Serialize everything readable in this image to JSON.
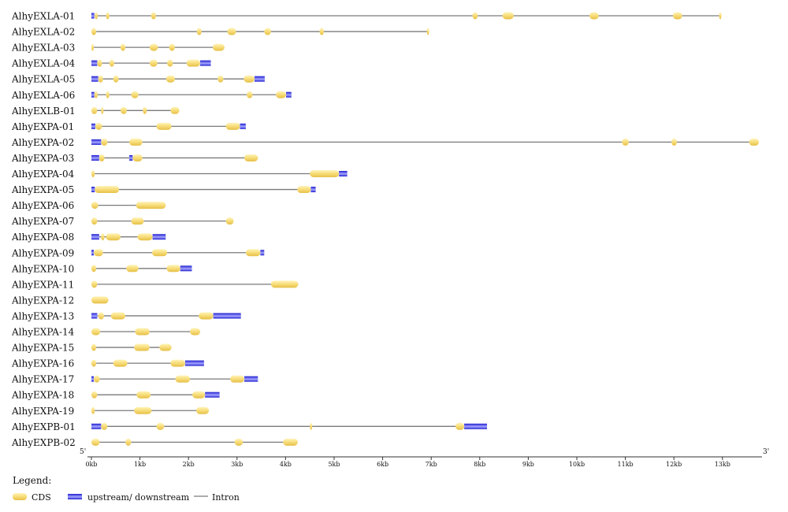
{
  "colors": {
    "cds_light": "#fff4b8",
    "cds_mid": "#f7dc78",
    "cds_dark": "#e6c048",
    "utr_dark": "#1c1ccf",
    "utr_light": "#a6a6ff",
    "intron": "#7a7a7a",
    "text": "#111111"
  },
  "axis": {
    "five_prime": "5'",
    "three_prime": "3'",
    "ticks": [
      {
        "value": 0,
        "label": "0kb"
      },
      {
        "value": 1,
        "label": "1kb"
      },
      {
        "value": 2,
        "label": "2kb"
      },
      {
        "value": 3,
        "label": "3kb"
      },
      {
        "value": 4,
        "label": "4kb"
      },
      {
        "value": 5,
        "label": "5kb"
      },
      {
        "value": 6,
        "label": "6kb"
      },
      {
        "value": 7,
        "label": "7kb"
      },
      {
        "value": 8,
        "label": "8kb"
      },
      {
        "value": 9,
        "label": "9kb"
      },
      {
        "value": 10,
        "label": "10kb"
      },
      {
        "value": 11,
        "label": "11kb"
      },
      {
        "value": 12,
        "label": "12kb"
      },
      {
        "value": 13,
        "label": "13kb"
      }
    ],
    "max": 13.75
  },
  "legend": {
    "title": "Legend:",
    "cds": "CDS",
    "utr": "upstream/ downstream",
    "intron": "Intron"
  },
  "genes": [
    {
      "name": "AlhyEXLA-01",
      "utr": [
        [
          0,
          0.06
        ]
      ],
      "cds": [
        [
          0.07,
          0.13
        ],
        [
          0.3,
          0.37
        ],
        [
          1.23,
          1.33
        ],
        [
          7.85,
          7.96
        ],
        [
          8.47,
          8.7
        ],
        [
          10.26,
          10.45
        ],
        [
          11.98,
          12.17
        ],
        [
          12.93,
          12.98
        ]
      ]
    },
    {
      "name": "AlhyEXLA-02",
      "utr": [],
      "cds": [
        [
          0,
          0.1
        ],
        [
          2.17,
          2.27
        ],
        [
          2.8,
          2.98
        ],
        [
          3.56,
          3.7
        ],
        [
          4.7,
          4.79
        ],
        [
          6.91,
          6.94
        ]
      ]
    },
    {
      "name": "AlhyEXLA-03",
      "utr": [],
      "cds": [
        [
          0,
          0.05
        ],
        [
          0.6,
          0.7
        ],
        [
          1.2,
          1.37
        ],
        [
          1.6,
          1.72
        ],
        [
          2.5,
          2.74
        ]
      ]
    },
    {
      "name": "AlhyEXLA-04",
      "utr": [
        [
          0,
          0.12
        ],
        [
          2.24,
          2.46
        ]
      ],
      "cds": [
        [
          0.12,
          0.22
        ],
        [
          0.37,
          0.47
        ],
        [
          1.2,
          1.36
        ],
        [
          1.56,
          1.68
        ],
        [
          1.96,
          2.24
        ]
      ]
    },
    {
      "name": "AlhyEXLA-05",
      "utr": [
        [
          0,
          0.14
        ],
        [
          3.36,
          3.57
        ]
      ],
      "cds": [
        [
          0.14,
          0.24
        ],
        [
          0.45,
          0.56
        ],
        [
          1.54,
          1.72
        ],
        [
          2.6,
          2.72
        ],
        [
          3.14,
          3.36
        ]
      ]
    },
    {
      "name": "AlhyEXLA-06",
      "utr": [
        [
          0,
          0.06
        ],
        [
          4.01,
          4.12
        ]
      ],
      "cds": [
        [
          0.06,
          0.13
        ],
        [
          0.3,
          0.37
        ],
        [
          0.82,
          0.97
        ],
        [
          3.2,
          3.32
        ],
        [
          3.8,
          4.01
        ]
      ]
    },
    {
      "name": "AlhyEXLB-01",
      "utr": [],
      "cds": [
        [
          0,
          0.12
        ],
        [
          0.2,
          0.25
        ],
        [
          0.6,
          0.73
        ],
        [
          1.06,
          1.14
        ],
        [
          1.63,
          1.81
        ]
      ]
    },
    {
      "name": "AlhyEXPA-01",
      "utr": [
        [
          0,
          0.08
        ],
        [
          3.06,
          3.18
        ]
      ],
      "cds": [
        [
          0.08,
          0.22
        ],
        [
          1.34,
          1.65
        ],
        [
          2.77,
          3.06
        ]
      ]
    },
    {
      "name": "AlhyEXPA-02",
      "utr": [
        [
          0,
          0.2
        ]
      ],
      "cds": [
        [
          0.2,
          0.33
        ],
        [
          0.78,
          1.05
        ],
        [
          10.93,
          11.07
        ],
        [
          11.95,
          12.06
        ],
        [
          13.55,
          13.75
        ]
      ]
    },
    {
      "name": "AlhyEXPA-03",
      "utr": [
        [
          0,
          0.16
        ],
        [
          0.78,
          0.85
        ]
      ],
      "cds": [
        [
          0.16,
          0.27
        ],
        [
          0.85,
          1.05
        ],
        [
          3.15,
          3.43
        ]
      ]
    },
    {
      "name": "AlhyEXPA-04",
      "utr": [
        [
          5.1,
          5.27
        ]
      ],
      "cds": [
        [
          0,
          0.07
        ],
        [
          4.5,
          5.1
        ]
      ]
    },
    {
      "name": "AlhyEXPA-05",
      "utr": [
        [
          0,
          0.07
        ],
        [
          4.52,
          4.62
        ]
      ],
      "cds": [
        [
          0.07,
          0.57
        ],
        [
          4.24,
          4.52
        ]
      ]
    },
    {
      "name": "AlhyEXPA-06",
      "utr": [],
      "cds": [
        [
          0,
          0.14
        ],
        [
          0.92,
          1.53
        ]
      ]
    },
    {
      "name": "AlhyEXPA-07",
      "utr": [],
      "cds": [
        [
          0,
          0.12
        ],
        [
          0.82,
          1.08
        ],
        [
          2.77,
          2.93
        ]
      ]
    },
    {
      "name": "AlhyEXPA-08",
      "utr": [
        [
          0,
          0.16
        ],
        [
          1.26,
          1.53
        ]
      ],
      "cds": [
        [
          0.2,
          0.27
        ],
        [
          0.3,
          0.6
        ],
        [
          0.95,
          1.26
        ]
      ]
    },
    {
      "name": "AlhyEXPA-09",
      "utr": [
        [
          0,
          0.05
        ],
        [
          3.48,
          3.56
        ]
      ],
      "cds": [
        [
          0.05,
          0.24
        ],
        [
          1.25,
          1.56
        ],
        [
          3.18,
          3.48
        ]
      ]
    },
    {
      "name": "AlhyEXPA-10",
      "utr": [
        [
          1.83,
          2.07
        ]
      ],
      "cds": [
        [
          0,
          0.1
        ],
        [
          0.72,
          0.97
        ],
        [
          1.55,
          1.83
        ]
      ]
    },
    {
      "name": "AlhyEXPA-11",
      "utr": [],
      "cds": [
        [
          0,
          0.12
        ],
        [
          3.7,
          4.26
        ]
      ]
    },
    {
      "name": "AlhyEXPA-12",
      "utr": [],
      "cds": [
        [
          0,
          0.35
        ]
      ]
    },
    {
      "name": "AlhyEXPA-13",
      "utr": [
        [
          0,
          0.12
        ],
        [
          2.51,
          3.08
        ]
      ],
      "cds": [
        [
          0.14,
          0.26
        ],
        [
          0.4,
          0.7
        ],
        [
          2.21,
          2.51
        ]
      ]
    },
    {
      "name": "AlhyEXPA-14",
      "utr": [],
      "cds": [
        [
          0,
          0.18
        ],
        [
          0.9,
          1.2
        ],
        [
          2.03,
          2.24
        ]
      ]
    },
    {
      "name": "AlhyEXPA-15",
      "utr": [],
      "cds": [
        [
          0,
          0.1
        ],
        [
          0.88,
          1.2
        ],
        [
          1.4,
          1.65
        ]
      ]
    },
    {
      "name": "AlhyEXPA-16",
      "utr": [
        [
          1.93,
          2.32
        ]
      ],
      "cds": [
        [
          0,
          0.1
        ],
        [
          0.45,
          0.74
        ],
        [
          1.63,
          1.93
        ]
      ]
    },
    {
      "name": "AlhyEXPA-17",
      "utr": [
        [
          0,
          0.05
        ],
        [
          3.15,
          3.43
        ]
      ],
      "cds": [
        [
          0.05,
          0.17
        ],
        [
          1.73,
          2.03
        ],
        [
          2.86,
          3.15
        ]
      ]
    },
    {
      "name": "AlhyEXPA-18",
      "utr": [
        [
          2.34,
          2.64
        ]
      ],
      "cds": [
        [
          0,
          0.12
        ],
        [
          0.93,
          1.22
        ],
        [
          2.08,
          2.34
        ]
      ]
    },
    {
      "name": "AlhyEXPA-19",
      "utr": [],
      "cds": [
        [
          0,
          0.07
        ],
        [
          0.88,
          1.24
        ],
        [
          2.16,
          2.42
        ]
      ]
    },
    {
      "name": "AlhyEXPB-01",
      "utr": [
        [
          0,
          0.2
        ],
        [
          7.68,
          8.15
        ]
      ],
      "cds": [
        [
          0.2,
          0.33
        ],
        [
          1.34,
          1.5
        ],
        [
          4.5,
          4.53
        ],
        [
          7.5,
          7.68
        ]
      ]
    },
    {
      "name": "AlhyEXPB-02",
      "utr": [],
      "cds": [
        [
          0,
          0.17
        ],
        [
          0.7,
          0.82
        ],
        [
          2.95,
          3.12
        ],
        [
          3.95,
          4.25
        ]
      ]
    }
  ]
}
